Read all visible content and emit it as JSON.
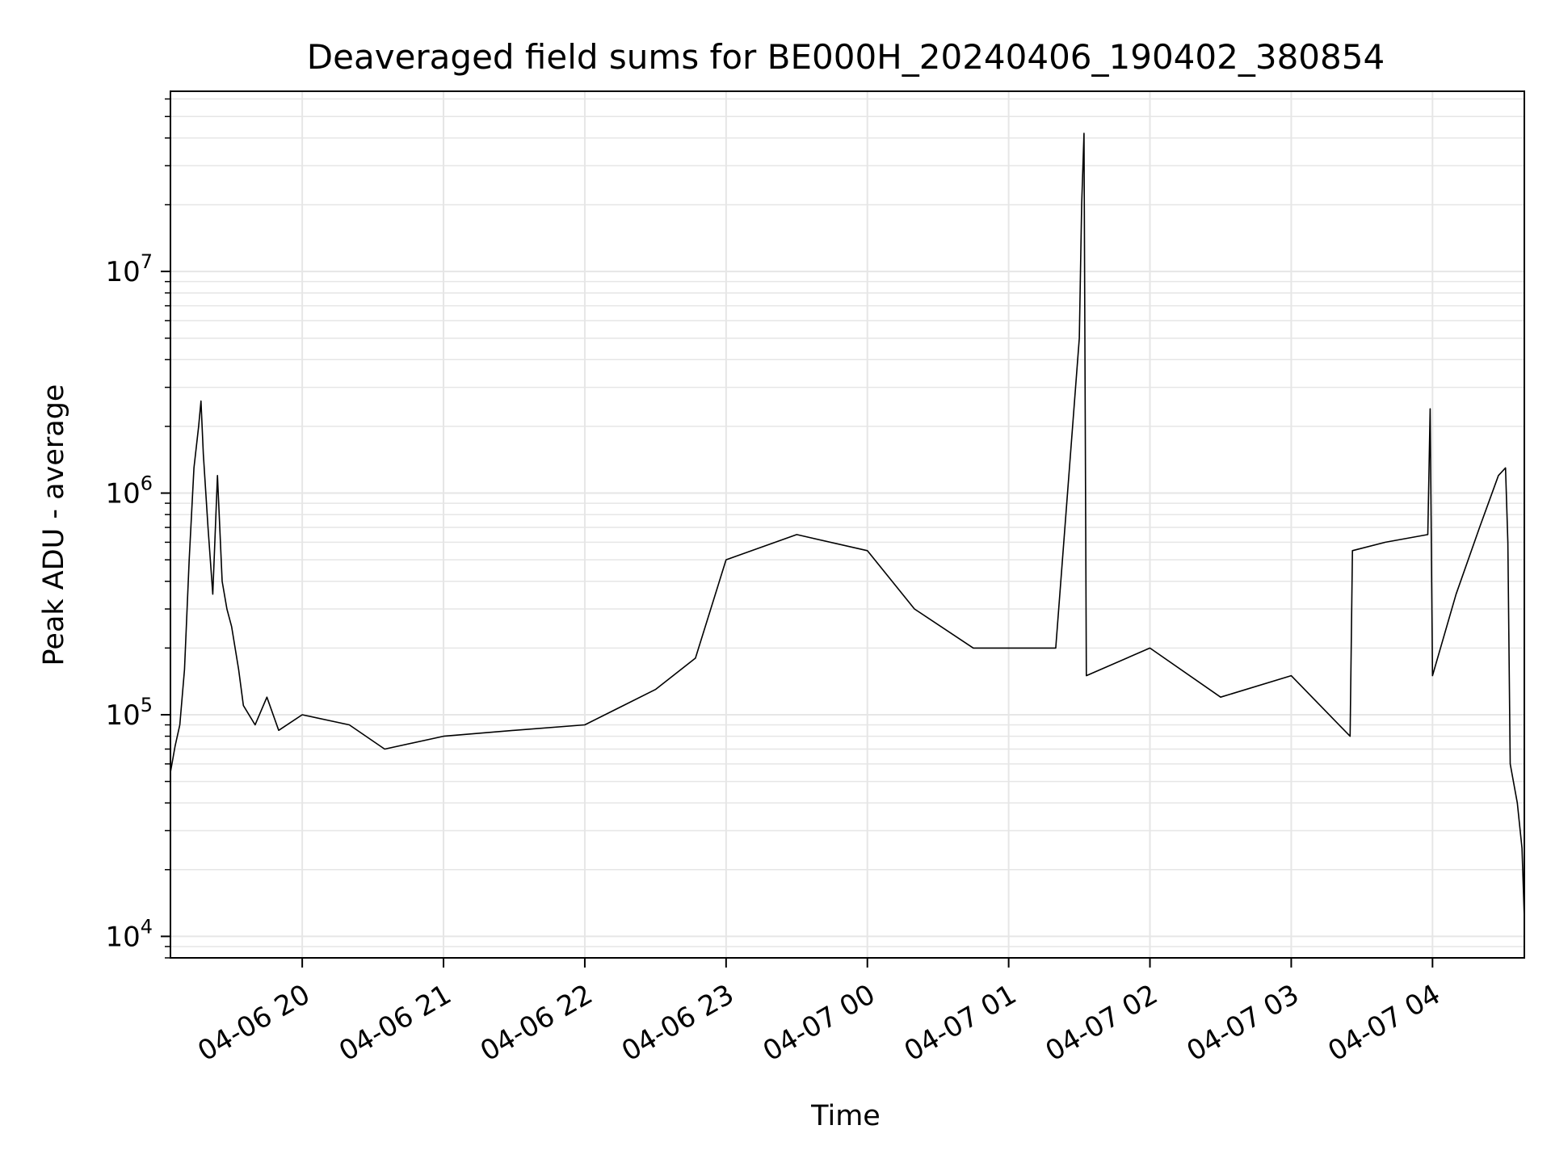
{
  "chart_data": {
    "type": "line",
    "title": "Deaveraged field sums for BE000H_20240406_190402_380854",
    "xlabel": "Time",
    "ylabel": "Peak ADU - average",
    "yscale": "log",
    "xlim": [
      "2024-04-06T19:04:02",
      "2024-04-07T04:39:00"
    ],
    "ylim": [
      8000,
      65000000
    ],
    "grid": true,
    "line_color": "#000000",
    "grid_color": "#e6e6e6",
    "x_ticks": [
      {
        "value": "2024-04-06T20:00:00",
        "label": "04-06 20"
      },
      {
        "value": "2024-04-06T21:00:00",
        "label": "04-06 21"
      },
      {
        "value": "2024-04-06T22:00:00",
        "label": "04-06 22"
      },
      {
        "value": "2024-04-06T23:00:00",
        "label": "04-06 23"
      },
      {
        "value": "2024-04-07T00:00:00",
        "label": "04-07 00"
      },
      {
        "value": "2024-04-07T01:00:00",
        "label": "04-07 01"
      },
      {
        "value": "2024-04-07T02:00:00",
        "label": "04-07 02"
      },
      {
        "value": "2024-04-07T03:00:00",
        "label": "04-07 03"
      },
      {
        "value": "2024-04-07T04:00:00",
        "label": "04-07 04"
      }
    ],
    "y_ticks": [
      {
        "value": 10000,
        "base": "10",
        "exp": "4"
      },
      {
        "value": 100000,
        "base": "10",
        "exp": "5"
      },
      {
        "value": 1000000,
        "base": "10",
        "exp": "6"
      },
      {
        "value": 10000000,
        "base": "10",
        "exp": "7"
      }
    ],
    "series": [
      {
        "points": [
          [
            "2024-04-06T19:04:02",
            55000
          ],
          [
            "2024-04-06T19:06:00",
            72000
          ],
          [
            "2024-04-06T19:08:00",
            90000
          ],
          [
            "2024-04-06T19:10:00",
            160000
          ],
          [
            "2024-04-06T19:12:00",
            500000
          ],
          [
            "2024-04-06T19:14:00",
            1300000
          ],
          [
            "2024-04-06T19:16:00",
            2000000
          ],
          [
            "2024-04-06T19:17:00",
            2600000
          ],
          [
            "2024-04-06T19:18:00",
            1500000
          ],
          [
            "2024-04-06T19:20:00",
            700000
          ],
          [
            "2024-04-06T19:22:00",
            350000
          ],
          [
            "2024-04-06T19:24:00",
            1200000
          ],
          [
            "2024-04-06T19:26:00",
            400000
          ],
          [
            "2024-04-06T19:28:00",
            300000
          ],
          [
            "2024-04-06T19:30:00",
            250000
          ],
          [
            "2024-04-06T19:33:00",
            160000
          ],
          [
            "2024-04-06T19:35:00",
            110000
          ],
          [
            "2024-04-06T19:40:00",
            90000
          ],
          [
            "2024-04-06T19:45:00",
            120000
          ],
          [
            "2024-04-06T19:50:00",
            85000
          ],
          [
            "2024-04-06T20:00:00",
            100000
          ],
          [
            "2024-04-06T20:20:00",
            90000
          ],
          [
            "2024-04-06T20:35:00",
            70000
          ],
          [
            "2024-04-06T21:00:00",
            80000
          ],
          [
            "2024-04-06T21:30:00",
            85000
          ],
          [
            "2024-04-06T22:00:00",
            90000
          ],
          [
            "2024-04-06T22:30:00",
            130000
          ],
          [
            "2024-04-06T22:47:00",
            180000
          ],
          [
            "2024-04-06T23:00:00",
            500000
          ],
          [
            "2024-04-06T23:30:00",
            650000
          ],
          [
            "2024-04-07T00:00:00",
            550000
          ],
          [
            "2024-04-07T00:20:00",
            300000
          ],
          [
            "2024-04-07T00:45:00",
            200000
          ],
          [
            "2024-04-07T01:00:00",
            200000
          ],
          [
            "2024-04-07T01:20:00",
            200000
          ],
          [
            "2024-04-07T01:30:00",
            5000000
          ],
          [
            "2024-04-07T01:31:00",
            20000000
          ],
          [
            "2024-04-07T01:32:00",
            42000000
          ],
          [
            "2024-04-07T01:33:00",
            150000
          ],
          [
            "2024-04-07T02:00:00",
            200000
          ],
          [
            "2024-04-07T02:30:00",
            120000
          ],
          [
            "2024-04-07T03:00:00",
            150000
          ],
          [
            "2024-04-07T03:25:00",
            80000
          ],
          [
            "2024-04-07T03:26:00",
            550000
          ],
          [
            "2024-04-07T03:40:00",
            600000
          ],
          [
            "2024-04-07T03:58:00",
            650000
          ],
          [
            "2024-04-07T03:59:00",
            2400000
          ],
          [
            "2024-04-07T04:00:00",
            150000
          ],
          [
            "2024-04-07T04:10:00",
            350000
          ],
          [
            "2024-04-07T04:20:00",
            700000
          ],
          [
            "2024-04-07T04:28:00",
            1200000
          ],
          [
            "2024-04-07T04:31:00",
            1300000
          ],
          [
            "2024-04-07T04:32:00",
            600000
          ],
          [
            "2024-04-07T04:33:00",
            60000
          ],
          [
            "2024-04-07T04:36:00",
            40000
          ],
          [
            "2024-04-07T04:38:00",
            25000
          ],
          [
            "2024-04-07T04:39:00",
            12000
          ]
        ]
      }
    ]
  }
}
